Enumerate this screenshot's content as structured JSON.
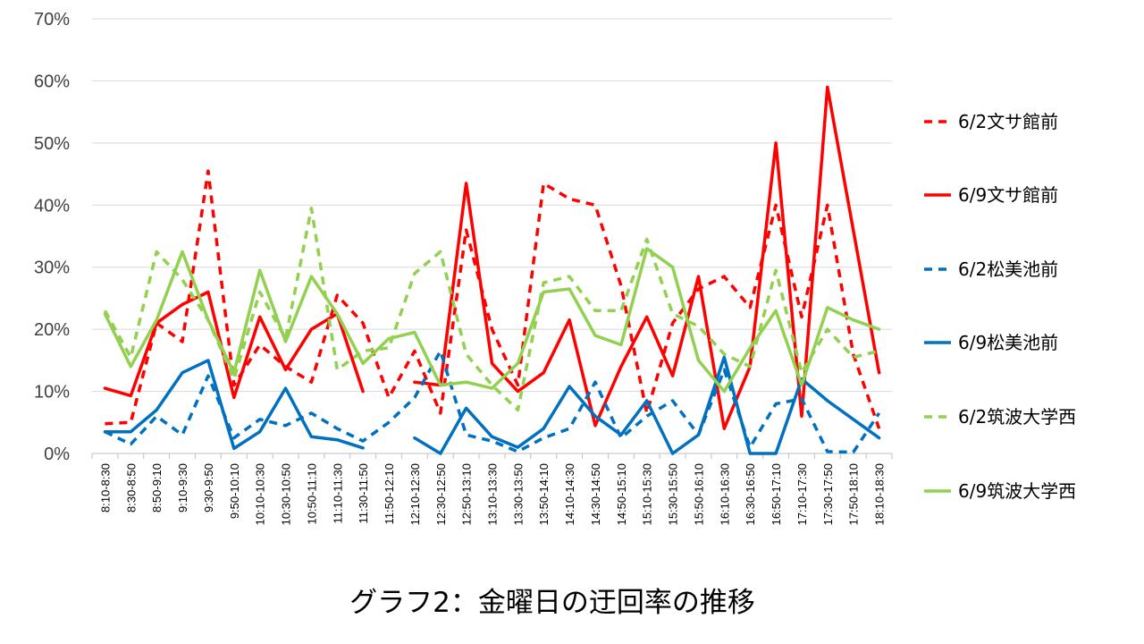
{
  "chart_data": {
    "type": "line",
    "title": "グラフ2：金曜日の迂回率の推移",
    "ylim": [
      0,
      70
    ],
    "yticks": [
      0,
      10,
      20,
      30,
      40,
      50,
      60,
      70
    ],
    "ytick_labels": [
      "0%",
      "10%",
      "20%",
      "30%",
      "40%",
      "50%",
      "60%",
      "70%"
    ],
    "grid": true,
    "legend_position": "right",
    "categories": [
      "8:10-8:30",
      "8:30-8:50",
      "8:50-9:10",
      "9:10-9:30",
      "9:30-9:50",
      "9:50-10:10",
      "10:10-10:30",
      "10:30-10:50",
      "10:50-11:10",
      "11:10-11:30",
      "11:30-11:50",
      "11:50-12:10",
      "12:10-12:30",
      "12:30-12:50",
      "12:50-13:10",
      "13:10-13:30",
      "13:30-13:50",
      "13:50-14:10",
      "14:10-14:30",
      "14:30-14:50",
      "14:50-15:10",
      "15:10-15:30",
      "15:30-15:50",
      "15:50-16:10",
      "16:10-16:30",
      "16:30-16:50",
      "16:50-17:10",
      "17:10-17:30",
      "17:30-17:50",
      "17:50-18:10",
      "18:10-18:30"
    ],
    "series": [
      {
        "name": "6/2文サ館前",
        "color": "#ff0000",
        "dash": "dashed",
        "values": [
          4.8,
          5,
          21,
          18,
          45.5,
          11,
          17.5,
          14,
          11.5,
          25.5,
          21,
          9,
          16.5,
          6.5,
          36,
          20,
          11,
          43.5,
          41,
          40,
          27,
          6.5,
          21,
          26.5,
          28.5,
          23.5,
          40,
          22,
          40,
          16,
          4
        ]
      },
      {
        "name": "6/9文サ館前",
        "color": "#ff0000",
        "dash": "solid",
        "values": [
          10.5,
          9.3,
          21,
          24,
          26,
          9,
          22,
          13.5,
          20,
          22.5,
          10,
          null,
          11.5,
          11,
          43.5,
          14.5,
          10,
          13,
          21.5,
          4.5,
          14,
          22,
          12.5,
          28.5,
          4,
          14,
          50,
          6,
          59,
          36,
          13
        ]
      },
      {
        "name": "6/2松美池前",
        "color": "#0070c0",
        "dash": "dashed",
        "values": [
          3.5,
          1.5,
          6,
          3,
          12.5,
          2.5,
          5.5,
          4.5,
          6.5,
          4,
          2,
          5,
          9,
          16.5,
          3,
          2,
          0.3,
          2.5,
          4,
          11.5,
          2.5,
          6,
          8.5,
          3,
          13.5,
          1,
          8,
          8.8,
          0.3,
          0.2,
          6.5
        ]
      },
      {
        "name": "6/9松美池前",
        "color": "#0070c0",
        "dash": "solid",
        "values": [
          3.5,
          3.5,
          7,
          13,
          15,
          0.8,
          3.5,
          10.5,
          2.7,
          2.2,
          0.9,
          null,
          2.5,
          0,
          7.3,
          2.7,
          1,
          4,
          10.8,
          6,
          3,
          8.5,
          0,
          3,
          15.5,
          0,
          0,
          12,
          8.5,
          5.5,
          2.5
        ]
      },
      {
        "name": "6/2筑波大学西",
        "color": "#92d050",
        "dash": "dashed",
        "values": [
          23,
          15.5,
          32.5,
          28,
          21.5,
          12,
          26,
          18.5,
          39.5,
          13.5,
          16.5,
          17,
          29,
          32.5,
          16,
          11,
          7,
          27.5,
          28.5,
          23,
          23,
          34.5,
          22.5,
          20.5,
          16,
          14,
          29.5,
          13,
          20,
          15.5,
          16.5
        ]
      },
      {
        "name": "6/9筑波大学西",
        "color": "#92d050",
        "dash": "solid",
        "values": [
          22.5,
          14,
          21.5,
          32.5,
          21.5,
          13,
          29.5,
          18,
          28.5,
          22.5,
          14.5,
          18.5,
          19.5,
          11,
          11.5,
          10.5,
          14.5,
          26,
          26.5,
          19,
          17.5,
          33,
          30,
          15,
          10,
          17,
          23,
          11,
          23.5,
          21.5,
          20
        ]
      }
    ]
  }
}
